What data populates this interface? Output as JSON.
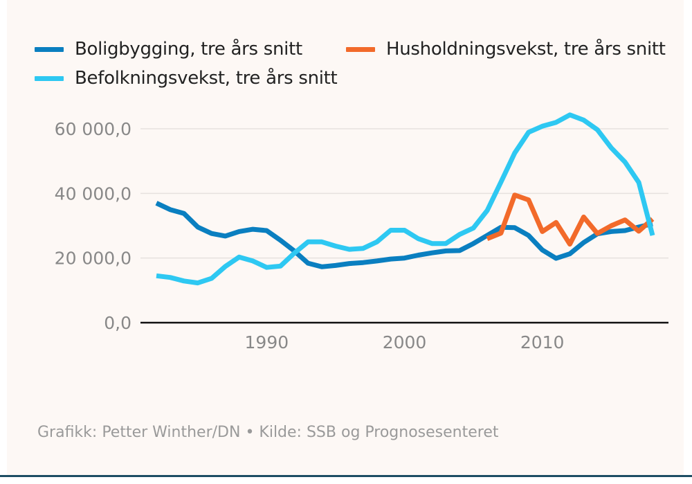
{
  "chart_data": {
    "type": "line",
    "title": "",
    "xlabel": "",
    "ylabel": "",
    "xlim": [
      1982,
      2018
    ],
    "ylim": [
      0,
      60000
    ],
    "y_ticks": [
      0,
      20000,
      40000,
      60000
    ],
    "y_tick_labels": [
      "0,0",
      "20 000,0",
      "40 000,0",
      "60 000,0"
    ],
    "x_ticks": [
      1990,
      2000,
      2010
    ],
    "x_tick_labels": [
      "1990",
      "2000",
      "2010"
    ],
    "grid": true,
    "legend_position": "top-left",
    "series": [
      {
        "name": "Boligbygging, tre års snitt",
        "color": "#0a7fc0",
        "x": [
          1982,
          1983,
          1984,
          1985,
          1986,
          1987,
          1988,
          1989,
          1990,
          1991,
          1992,
          1993,
          1994,
          1995,
          1996,
          1997,
          1998,
          1999,
          2000,
          2001,
          2002,
          2003,
          2004,
          2005,
          2006,
          2007,
          2008,
          2009,
          2010,
          2011,
          2012,
          2013,
          2014,
          2015,
          2016,
          2017,
          2018
        ],
        "values": [
          37000,
          35000,
          33800,
          29600,
          27600,
          26800,
          28200,
          28900,
          28500,
          25500,
          22200,
          18400,
          17300,
          17700,
          18300,
          18600,
          19100,
          19700,
          20000,
          20900,
          21600,
          22200,
          22300,
          24500,
          27000,
          29500,
          29400,
          27000,
          22500,
          19900,
          21300,
          24800,
          27500,
          28200,
          28500,
          29600,
          30600
        ]
      },
      {
        "name": "Husholdningsvekst, tre års snitt",
        "color": "#f26a2a",
        "x": [
          2006,
          2007,
          2008,
          2009,
          2010,
          2011,
          2012,
          2013,
          2014,
          2015,
          2016,
          2017,
          2018
        ],
        "values": [
          26000,
          27700,
          39500,
          38000,
          28200,
          31000,
          24300,
          32700,
          27600,
          30000,
          31800,
          28300,
          32100
        ]
      },
      {
        "name": "Befolkningsvekst, tre års snitt",
        "color": "#2ec8f2",
        "x": [
          1982,
          1983,
          1984,
          1985,
          1986,
          1987,
          1988,
          1989,
          1990,
          1991,
          1992,
          1993,
          1994,
          1995,
          1996,
          1997,
          1998,
          1999,
          2000,
          2001,
          2002,
          2003,
          2004,
          2005,
          2006,
          2007,
          2008,
          2009,
          2010,
          2011,
          2012,
          2013,
          2014,
          2015,
          2016,
          2017,
          2018
        ],
        "values": [
          14500,
          14000,
          12900,
          12300,
          13700,
          17400,
          20300,
          19100,
          17100,
          17500,
          21500,
          25000,
          25000,
          23700,
          22700,
          23000,
          25000,
          28600,
          28600,
          26000,
          24500,
          24500,
          27300,
          29300,
          34700,
          43500,
          52500,
          58900,
          60800,
          62000,
          64300,
          62700,
          59700,
          54100,
          49700,
          43400,
          27000
        ]
      }
    ],
    "source": "Grafikk: Petter Winther/DN • Kilde: SSB og Prognosesenteret"
  }
}
